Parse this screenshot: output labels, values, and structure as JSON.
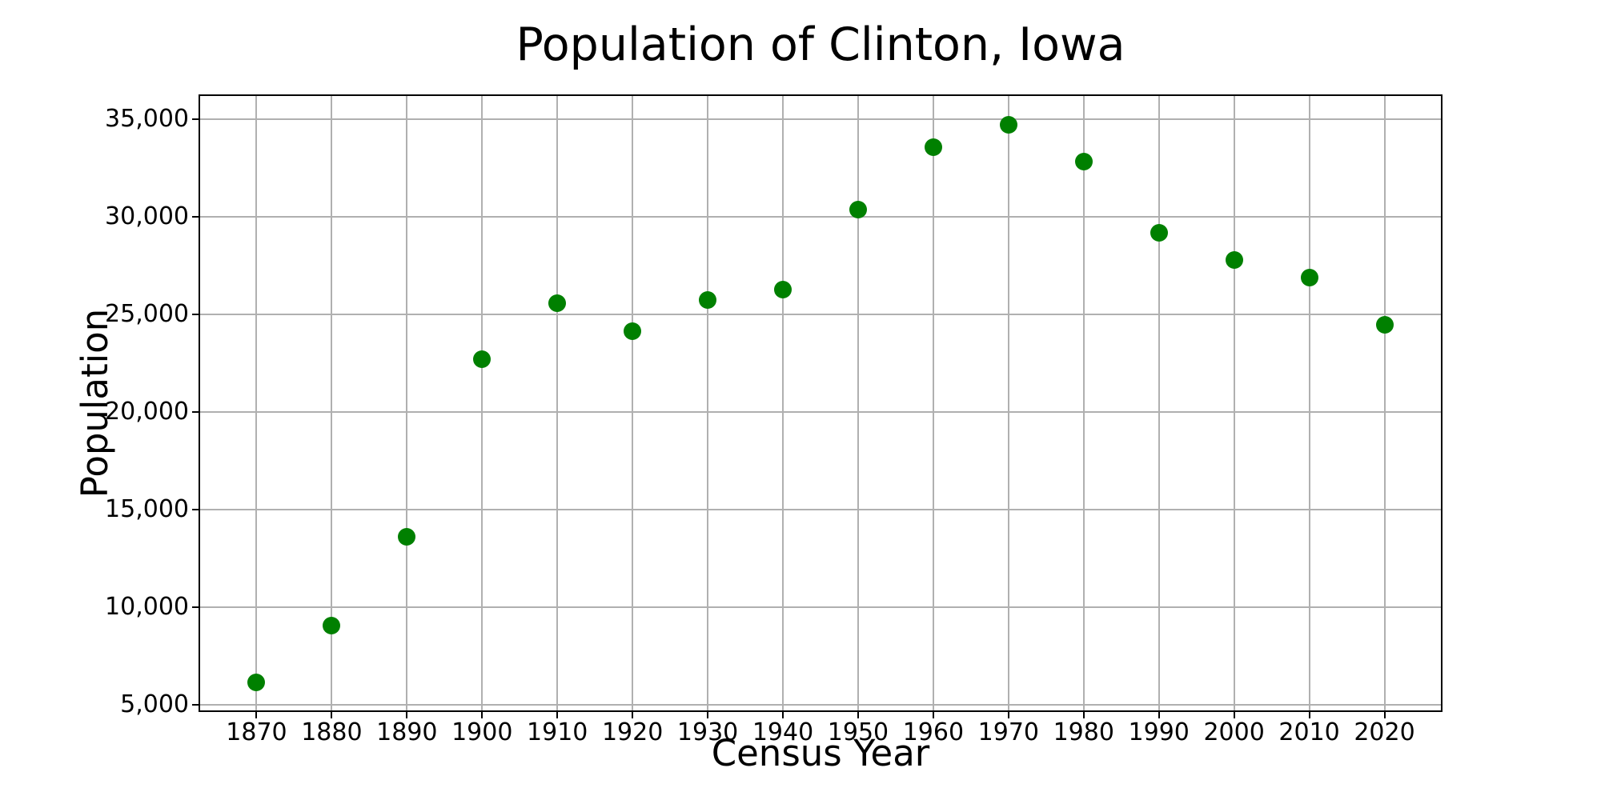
{
  "chart_data": {
    "type": "scatter",
    "title": "Population of Clinton, Iowa",
    "xlabel": "Census Year",
    "ylabel": "Population",
    "x": [
      1870,
      1880,
      1890,
      1900,
      1910,
      1920,
      1930,
      1940,
      1950,
      1960,
      1970,
      1980,
      1990,
      2000,
      2010,
      2020
    ],
    "y": [
      6129,
      9052,
      13619,
      22698,
      25577,
      24151,
      25726,
      26270,
      30379,
      33589,
      34719,
      32828,
      29201,
      27772,
      26885,
      24469
    ],
    "x_ticks": [
      1870,
      1880,
      1890,
      1900,
      1910,
      1920,
      1930,
      1940,
      1950,
      1960,
      1970,
      1980,
      1990,
      2000,
      2010,
      2020
    ],
    "x_tick_labels": [
      "1870",
      "1880",
      "1890",
      "1900",
      "1910",
      "1920",
      "1930",
      "1940",
      "1950",
      "1960",
      "1970",
      "1980",
      "1990",
      "2000",
      "2010",
      "2020"
    ],
    "y_ticks": [
      5000,
      10000,
      15000,
      20000,
      25000,
      30000,
      35000
    ],
    "y_tick_labels": [
      "5,000",
      "10,000",
      "15,000",
      "20,000",
      "25,000",
      "30,000",
      "35,000"
    ],
    "xlim": [
      1862.5,
      2027.5
    ],
    "ylim": [
      4700,
      36200
    ],
    "grid": true,
    "legend": false,
    "marker_color": "#008000",
    "grid_color": "#b0b0b0",
    "axis_color": "#000000",
    "background_color": "#ffffff"
  }
}
